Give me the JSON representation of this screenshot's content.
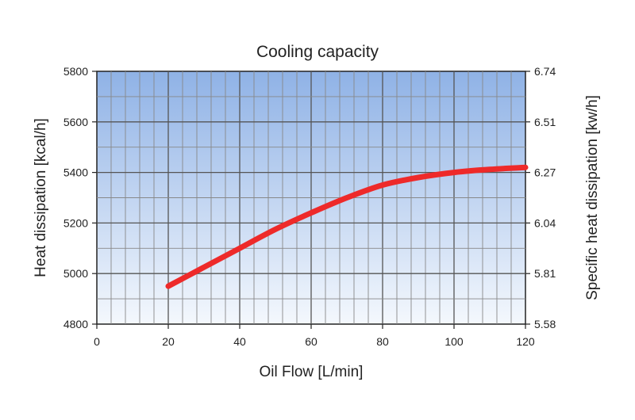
{
  "chart_data": {
    "type": "line",
    "title": "Cooling capacity",
    "xlabel": "Oil Flow [L/min]",
    "ylabel": "Heat dissipation [kcal/h]",
    "y2label": "Specific heat dissipation [kw/h]",
    "xlim": [
      0,
      120
    ],
    "ylim": [
      4800,
      5800
    ],
    "x_ticks": [
      "0",
      "20",
      "40",
      "60",
      "80",
      "100",
      "120"
    ],
    "y_ticks": [
      "4800",
      "5000",
      "5200",
      "5400",
      "5600",
      "5800"
    ],
    "y2_ticks": [
      "5.58",
      "5.81",
      "6.04",
      "6.27",
      "6.51",
      "6.74"
    ],
    "grid": true,
    "series": [
      {
        "color": "#ee2a2a",
        "x": [
          20,
          30,
          40,
          50,
          60,
          70,
          80,
          90,
          100,
          110,
          120
        ],
        "y": [
          4950,
          5025,
          5100,
          5175,
          5240,
          5300,
          5350,
          5380,
          5400,
          5412,
          5420
        ]
      }
    ]
  }
}
